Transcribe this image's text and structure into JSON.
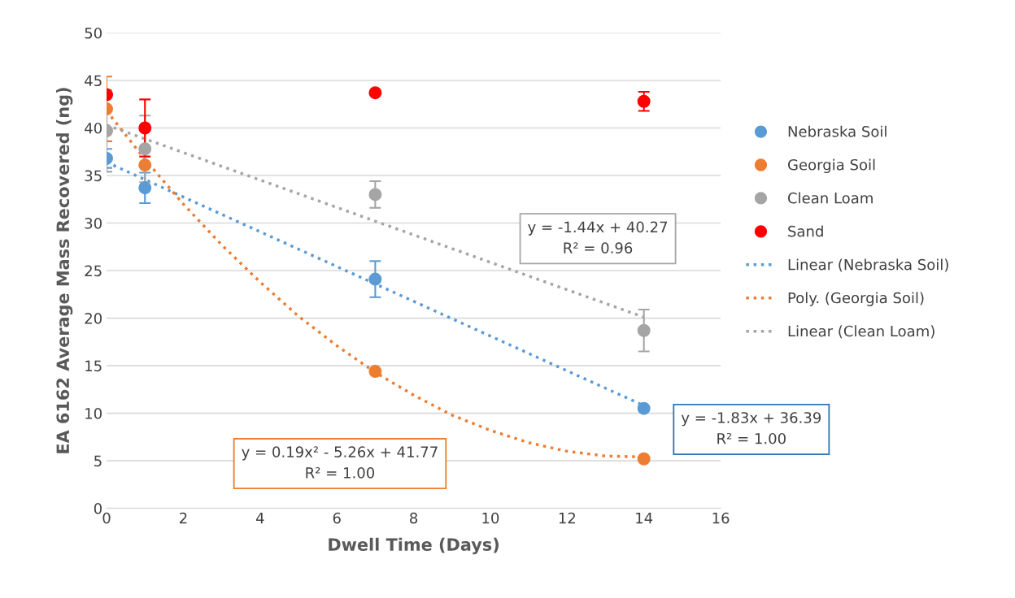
{
  "chart_data": {
    "type": "scatter",
    "xlabel": "Dwell Time (Days)",
    "ylabel": "EA 6162 Average Mass Recovered (ng)",
    "xlim": [
      0,
      16
    ],
    "xticks": [
      0,
      2,
      4,
      6,
      8,
      10,
      12,
      14,
      16
    ],
    "ylim": [
      0,
      50
    ],
    "yticks": [
      0,
      5,
      10,
      15,
      20,
      25,
      30,
      35,
      40,
      45,
      50
    ],
    "grid": "y",
    "legend": "right",
    "marker": "circle",
    "series": [
      {
        "name": "Nebraska Soil",
        "color": "#5b9bd5",
        "x": [
          0,
          1,
          7,
          14
        ],
        "values": [
          36.8,
          33.7,
          24.1,
          10.5
        ],
        "errors": [
          1.0,
          1.6,
          1.9,
          null
        ]
      },
      {
        "name": "Georgia Soil",
        "color": "#ed7d31",
        "x": [
          0,
          1,
          7,
          14
        ],
        "values": [
          42.0,
          36.1,
          14.4,
          5.2
        ],
        "errors": [
          3.4,
          null,
          null,
          null
        ]
      },
      {
        "name": "Clean Loam",
        "color": "#a5a5a5",
        "x": [
          0,
          1,
          7,
          14
        ],
        "values": [
          39.7,
          37.8,
          33.0,
          18.7
        ],
        "errors": [
          4.3,
          3.5,
          1.4,
          2.2
        ]
      },
      {
        "name": "Sand",
        "color": "#ff0000",
        "x": [
          0,
          1,
          7,
          14
        ],
        "values": [
          43.5,
          40.0,
          43.7,
          42.8
        ],
        "errors": [
          null,
          3.0,
          null,
          1.0
        ]
      },
      {
        "name": "Linear (Nebraska Soil)",
        "type": "line",
        "marker": "none",
        "line_style": "dotted",
        "color": "#5b9bd5",
        "x": [
          0,
          14
        ],
        "values": [
          36.4,
          10.8
        ]
      },
      {
        "name": "Poly. (Georgia Soil)",
        "type": "line",
        "marker": "none",
        "line_style": "dotted",
        "color": "#ed7d31",
        "x": [
          0,
          1,
          2,
          3,
          4,
          5,
          6,
          7,
          8,
          9,
          10,
          11,
          12,
          13,
          14
        ],
        "values": [
          41.8,
          36.7,
          32.0,
          27.7,
          23.8,
          20.2,
          17.1,
          14.3,
          11.9,
          9.8,
          8.2,
          6.9,
          6.0,
          5.5,
          5.4
        ]
      },
      {
        "name": "Linear (Clean Loam)",
        "type": "line",
        "marker": "none",
        "line_style": "dotted",
        "color": "#a5a5a5",
        "x": [
          0,
          14
        ],
        "values": [
          40.3,
          20.1
        ]
      }
    ],
    "annotations": [
      "y = -1.44x + 40.27\nR² = 0.96",
      "y = -1.83x + 36.39\nR² = 1.00",
      "y = 0.19x² - 5.26x + 41.77\nR² = 1.00"
    ]
  }
}
